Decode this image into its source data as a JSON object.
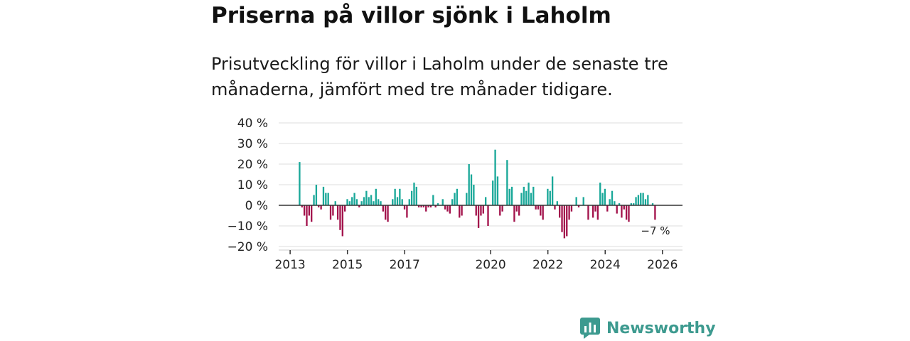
{
  "headline": "Priserna på villor sjönk i Laholm",
  "subtitle": "Prisutveckling för villor i Laholm under de senaste tre månaderna, jämfört med tre månader tidigare.",
  "brand": {
    "name": "Newsworthy",
    "icon": "newsworthy-logo-icon"
  },
  "colors": {
    "positive": "#1aa899",
    "negative": "#a3134c",
    "zero_line": "#333333",
    "grid": "#dddddd"
  },
  "chart_data": {
    "type": "bar",
    "title": "",
    "xlabel": "",
    "ylabel": "",
    "ylim": [
      -20,
      40
    ],
    "y_ticks": [
      40,
      30,
      20,
      10,
      0,
      -10,
      -20
    ],
    "y_tick_labels": [
      "40 %",
      "30 %",
      "20 %",
      "10 %",
      "0 %",
      "−10 %",
      "−20 %"
    ],
    "x_tick_labels": [
      "2013",
      "2015",
      "2017",
      "2020",
      "2022",
      "2024",
      "2026"
    ],
    "x_tick_values": [
      2013.0,
      2015.0,
      2017.0,
      2020.0,
      2022.0,
      2024.0,
      2026.0
    ],
    "x_range": [
      2012.6,
      2026.7
    ],
    "bar_width": 0.058,
    "start": 2013.33,
    "step": 0.0833,
    "values": [
      21,
      -1,
      -5,
      -10,
      -5,
      -8,
      5,
      10,
      -1,
      -2,
      9,
      6,
      6,
      -7,
      -5,
      2,
      -7,
      -12,
      -15,
      -3,
      3,
      2,
      4,
      6,
      3,
      -1,
      2,
      4,
      7,
      4,
      5,
      2,
      8,
      3,
      2,
      -3,
      -7,
      -8,
      0,
      3,
      8,
      4,
      8,
      3,
      -2,
      -6,
      3,
      7,
      11,
      9,
      -1,
      -1,
      -1,
      -3,
      -1,
      -1,
      5,
      -1,
      1,
      0,
      3,
      -2,
      -3,
      -4,
      3,
      6,
      8,
      -6,
      -5,
      0,
      6,
      20,
      15,
      10,
      -5,
      -11,
      -5,
      -4,
      4,
      -10,
      0,
      12,
      27,
      14,
      -5,
      -3,
      0,
      22,
      8,
      9,
      -8,
      -3,
      -5,
      6,
      9,
      7,
      11,
      6,
      9,
      -2,
      -2,
      -5,
      -7,
      0,
      8,
      7,
      14,
      -2,
      2,
      -6,
      -13,
      -16,
      -15,
      -7,
      -3,
      0,
      4,
      -1,
      0,
      4,
      0,
      -7,
      0,
      -6,
      -3,
      -7,
      11,
      6,
      8,
      -3,
      3,
      7,
      2,
      -4,
      1,
      -6,
      -2,
      -7,
      -8,
      1,
      1,
      4,
      5,
      6,
      6,
      3,
      5,
      0,
      1,
      -7
    ],
    "annotation": "−7 %"
  }
}
